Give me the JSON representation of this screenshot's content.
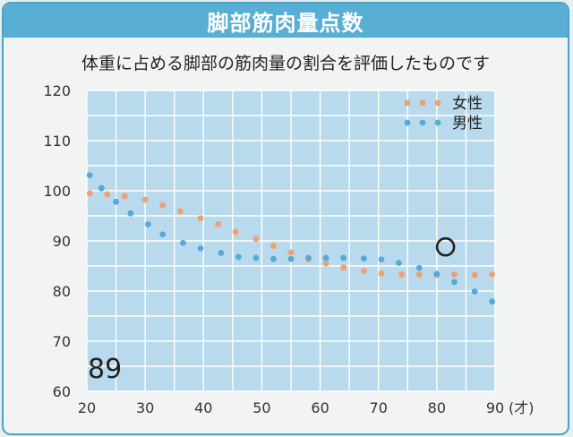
{
  "header": {
    "title": "脚部筋肉量点数",
    "subtitle": "体重に占める脚部の筋肉量の割合を評価したものです"
  },
  "chart_data": {
    "type": "scatter",
    "title": "脚部筋肉量点数",
    "subtitle": "体重に占める脚部の筋肉量の割合を評価したものです",
    "x_ticks": [
      20,
      30,
      40,
      50,
      60,
      70,
      80,
      90
    ],
    "y_ticks": [
      60,
      70,
      80,
      90,
      100,
      110,
      120
    ],
    "x_unit": "(才)",
    "xlim": [
      20,
      90
    ],
    "ylim": [
      60,
      120
    ],
    "grid": true,
    "legend_position": "top-right",
    "score_label": "89",
    "marker": {
      "symbol": "○",
      "x": 81.5,
      "y": 88.8
    },
    "series": [
      {
        "name": "女性",
        "color": "#f0a070",
        "points": [
          {
            "x": 20.5,
            "y": 99.5
          },
          {
            "x": 23.5,
            "y": 99.3
          },
          {
            "x": 26.5,
            "y": 98.9
          },
          {
            "x": 30.0,
            "y": 98.2
          },
          {
            "x": 33.0,
            "y": 97.1
          },
          {
            "x": 36.0,
            "y": 95.9
          },
          {
            "x": 39.5,
            "y": 94.5
          },
          {
            "x": 42.5,
            "y": 93.3
          },
          {
            "x": 45.5,
            "y": 91.8
          },
          {
            "x": 49.0,
            "y": 90.4
          },
          {
            "x": 52.0,
            "y": 89.0
          },
          {
            "x": 55.0,
            "y": 87.7
          },
          {
            "x": 58.0,
            "y": 86.3
          },
          {
            "x": 61.0,
            "y": 85.5
          },
          {
            "x": 64.0,
            "y": 84.7
          },
          {
            "x": 67.5,
            "y": 84.0
          },
          {
            "x": 70.5,
            "y": 83.5
          },
          {
            "x": 74.0,
            "y": 83.3
          },
          {
            "x": 77.0,
            "y": 83.3
          },
          {
            "x": 80.0,
            "y": 83.2
          },
          {
            "x": 83.0,
            "y": 83.3
          },
          {
            "x": 86.5,
            "y": 83.2
          },
          {
            "x": 89.5,
            "y": 83.3
          }
        ]
      },
      {
        "name": "男性",
        "color": "#58a8d8",
        "points": [
          {
            "x": 20.5,
            "y": 103.1
          },
          {
            "x": 22.5,
            "y": 100.5
          },
          {
            "x": 25.0,
            "y": 97.8
          },
          {
            "x": 27.5,
            "y": 95.5
          },
          {
            "x": 30.5,
            "y": 93.3
          },
          {
            "x": 33.0,
            "y": 91.3
          },
          {
            "x": 36.5,
            "y": 89.6
          },
          {
            "x": 39.5,
            "y": 88.5
          },
          {
            "x": 43.0,
            "y": 87.6
          },
          {
            "x": 46.0,
            "y": 86.8
          },
          {
            "x": 49.0,
            "y": 86.6
          },
          {
            "x": 52.0,
            "y": 86.4
          },
          {
            "x": 55.0,
            "y": 86.4
          },
          {
            "x": 58.0,
            "y": 86.6
          },
          {
            "x": 61.0,
            "y": 86.6
          },
          {
            "x": 64.0,
            "y": 86.6
          },
          {
            "x": 67.5,
            "y": 86.5
          },
          {
            "x": 70.5,
            "y": 86.3
          },
          {
            "x": 73.5,
            "y": 85.6
          },
          {
            "x": 77.0,
            "y": 84.6
          },
          {
            "x": 80.0,
            "y": 83.4
          },
          {
            "x": 83.0,
            "y": 81.8
          },
          {
            "x": 86.5,
            "y": 79.9
          },
          {
            "x": 89.5,
            "y": 77.9
          }
        ]
      }
    ]
  }
}
